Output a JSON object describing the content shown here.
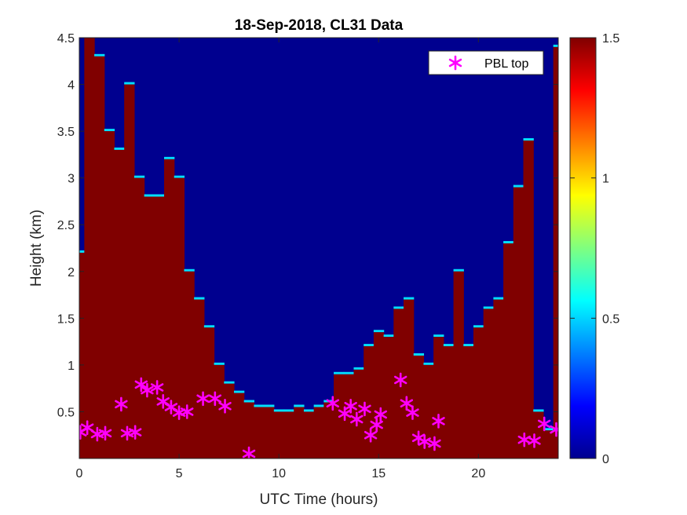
{
  "chart_data": {
    "type": "heatmap",
    "title": "18-Sep-2018, CL31 Data",
    "xlabel": "UTC Time (hours)",
    "ylabel": "Height (km)",
    "xlim": [
      0,
      24
    ],
    "ylim": [
      0,
      4.5
    ],
    "x_ticks": [
      "0",
      "5",
      "10",
      "15",
      "20"
    ],
    "x_tick_values": [
      0,
      5,
      10,
      15,
      20
    ],
    "y_ticks": [
      "0.5",
      "1",
      "1.5",
      "2",
      "2.5",
      "3",
      "3.5",
      "4",
      "4.5"
    ],
    "y_tick_values": [
      0.5,
      1,
      1.5,
      2,
      2.5,
      3,
      3.5,
      4,
      4.5
    ],
    "colorbar": {
      "limits": [
        0,
        1.5
      ],
      "ticks": [
        "0",
        "0.5",
        "1",
        "1.5"
      ],
      "tick_values": [
        0,
        0.5,
        1,
        1.5
      ],
      "colormap": "jet"
    },
    "backscatter_top_km_profile": {
      "x": [
        0.0,
        0.5,
        1.0,
        1.5,
        2.0,
        2.5,
        3.0,
        3.5,
        4.0,
        4.5,
        5.0,
        5.5,
        6.0,
        6.5,
        7.0,
        7.5,
        8.0,
        8.5,
        9.0,
        9.5,
        10.0,
        10.5,
        11.0,
        11.5,
        12.0,
        12.5,
        13.0,
        13.5,
        14.0,
        14.5,
        15.0,
        15.5,
        16.0,
        16.5,
        17.0,
        17.5,
        18.0,
        18.5,
        19.0,
        19.5,
        20.0,
        20.5,
        21.0,
        21.5,
        22.0,
        22.5,
        23.0,
        23.5,
        24.0
      ],
      "y": [
        2.2,
        4.5,
        4.3,
        3.5,
        3.3,
        4.0,
        3.0,
        2.8,
        2.8,
        3.2,
        3.0,
        2.0,
        1.7,
        1.4,
        1.0,
        0.8,
        0.7,
        0.6,
        0.55,
        0.55,
        0.5,
        0.5,
        0.55,
        0.5,
        0.55,
        0.6,
        0.9,
        0.9,
        0.95,
        1.2,
        1.35,
        1.3,
        1.6,
        1.7,
        1.1,
        1.0,
        1.3,
        1.2,
        2.0,
        1.2,
        1.4,
        1.6,
        1.7,
        2.3,
        2.9,
        3.4,
        0.5,
        0.3,
        4.4
      ]
    },
    "series": [
      {
        "name": "PBL top",
        "marker": "asterisk",
        "color": "#FF00FF",
        "x": [
          0.05,
          0.4,
          0.9,
          1.3,
          2.1,
          2.4,
          2.8,
          3.1,
          3.4,
          3.9,
          4.2,
          4.6,
          5.0,
          5.4,
          6.2,
          6.8,
          7.3,
          8.5,
          12.7,
          13.3,
          13.6,
          13.9,
          14.3,
          14.6,
          14.9,
          15.1,
          16.1,
          16.4,
          16.7,
          17.0,
          17.3,
          17.8,
          18.0,
          22.3,
          22.8,
          23.3,
          23.9
        ],
        "y": [
          0.28,
          0.33,
          0.26,
          0.27,
          0.58,
          0.27,
          0.28,
          0.79,
          0.73,
          0.76,
          0.61,
          0.55,
          0.49,
          0.5,
          0.64,
          0.64,
          0.56,
          0.05,
          0.59,
          0.48,
          0.56,
          0.42,
          0.53,
          0.25,
          0.36,
          0.47,
          0.84,
          0.59,
          0.49,
          0.22,
          0.18,
          0.16,
          0.4,
          0.2,
          0.19,
          0.37,
          0.31
        ]
      }
    ],
    "legend_position": "top-right"
  }
}
